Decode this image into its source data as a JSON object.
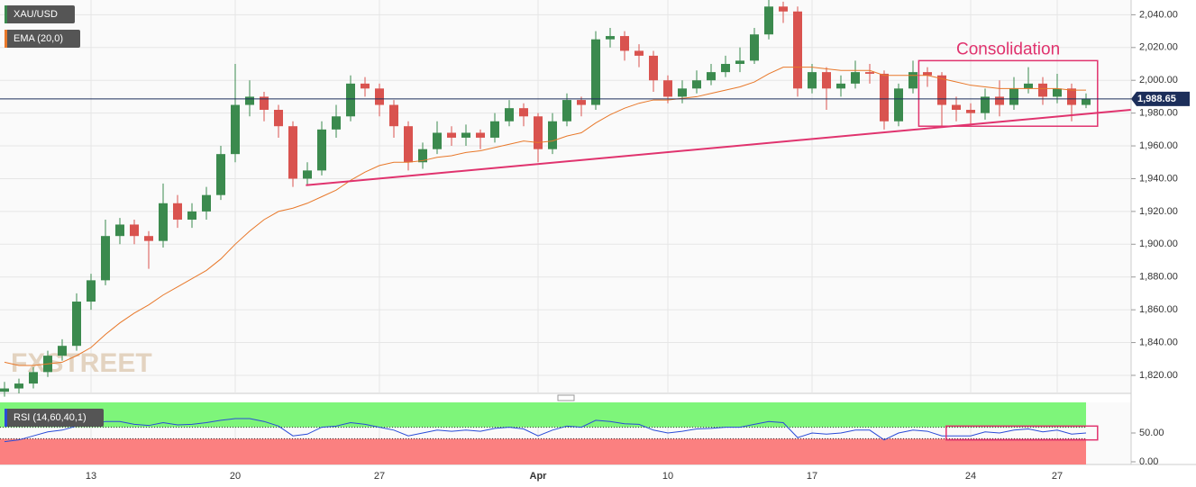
{
  "chart_data": {
    "type": "candlestick",
    "title": "XAU/USD",
    "categories": [
      null,
      null,
      null,
      null,
      null,
      null,
      "13",
      null,
      null,
      null,
      null,
      null,
      null,
      null,
      null,
      null,
      "20",
      null,
      null,
      null,
      null,
      null,
      null,
      null,
      null,
      null,
      "27",
      null,
      null,
      null,
      null,
      null,
      null,
      null,
      null,
      null,
      null,
      "Apr",
      null,
      null,
      null,
      null,
      null,
      null,
      null,
      null,
      "10",
      null,
      null,
      null,
      null,
      null,
      null,
      null,
      null,
      null,
      "17",
      null,
      null,
      null,
      null,
      null,
      null,
      null,
      null,
      null,
      null,
      "24",
      null,
      null,
      null,
      null,
      null,
      "27",
      null,
      null
    ],
    "open": [
      1810,
      1812,
      1815,
      1822,
      1832,
      1838,
      1865,
      1878,
      1905,
      1912,
      1905,
      1902,
      1925,
      1915,
      1920,
      1930,
      1955,
      1985,
      1990,
      1982,
      1972,
      1940,
      1945,
      1970,
      1978,
      1998,
      1995,
      1985,
      1972,
      1950,
      1958,
      1968,
      1965,
      1968,
      1965,
      1975,
      1983,
      1978,
      1958,
      1975,
      1988,
      1985,
      2025,
      2027,
      2018,
      2015,
      2000,
      1990,
      1995,
      2000,
      2005,
      2010,
      2012,
      2028,
      2045,
      2042,
      1995,
      2005,
      1995,
      1998,
      2005,
      2004,
      1975,
      1995,
      2005,
      2003,
      1985,
      1982,
      1980,
      1990,
      1985,
      1995,
      1998,
      1990,
      1995,
      1985
    ],
    "high": [
      1816,
      1818,
      1825,
      1835,
      1842,
      1870,
      1882,
      1915,
      1916,
      1915,
      1908,
      1937,
      1930,
      1925,
      1935,
      1960,
      2010,
      2000,
      1993,
      1985,
      1975,
      1950,
      1975,
      1985,
      2003,
      2002,
      1998,
      1988,
      1975,
      1962,
      1975,
      1972,
      1973,
      1970,
      1980,
      1988,
      1986,
      1980,
      1980,
      1992,
      1990,
      2030,
      2032,
      2030,
      2022,
      2018,
      2003,
      2000,
      2006,
      2010,
      2015,
      2020,
      2032,
      2049,
      2048,
      2045,
      2010,
      2008,
      2003,
      2012,
      2010,
      2006,
      1998,
      2012,
      2008,
      2005,
      1990,
      1986,
      1995,
      2000,
      2002,
      2008,
      2002,
      2004,
      1998,
      1992
    ],
    "low": [
      1807,
      1809,
      1812,
      1819,
      1829,
      1835,
      1860,
      1875,
      1900,
      1900,
      1885,
      1898,
      1910,
      1910,
      1915,
      1927,
      1950,
      1978,
      1975,
      1965,
      1935,
      1936,
      1942,
      1965,
      1975,
      1990,
      1978,
      1965,
      1945,
      1946,
      1955,
      1960,
      1960,
      1958,
      1962,
      1972,
      1972,
      1950,
      1955,
      1972,
      1978,
      1982,
      2020,
      2012,
      2008,
      1993,
      1986,
      1986,
      1992,
      1997,
      2002,
      2005,
      2010,
      2025,
      2035,
      1990,
      1992,
      1982,
      1990,
      1995,
      1998,
      1970,
      1972,
      1992,
      1996,
      1972,
      1975,
      1972,
      1976,
      1978,
      1982,
      1992,
      1985,
      1986,
      1975,
      1983
    ],
    "close": [
      1812,
      1815,
      1822,
      1832,
      1838,
      1865,
      1878,
      1905,
      1912,
      1905,
      1902,
      1925,
      1915,
      1920,
      1930,
      1955,
      1985,
      1990,
      1982,
      1972,
      1940,
      1945,
      1970,
      1978,
      1998,
      1995,
      1985,
      1972,
      1950,
      1958,
      1968,
      1965,
      1968,
      1965,
      1975,
      1983,
      1978,
      1958,
      1975,
      1988,
      1985,
      2025,
      2027,
      2018,
      2015,
      2000,
      1990,
      1995,
      2000,
      2005,
      2010,
      2012,
      2028,
      2045,
      2042,
      1995,
      2005,
      1995,
      1998,
      2005,
      2004,
      1975,
      1995,
      2005,
      2003,
      1985,
      1982,
      1980,
      1990,
      1985,
      1995,
      1998,
      1990,
      1995,
      1985,
      1988.65
    ],
    "up_color": "#3b8a4e",
    "down_color": "#d9534f",
    "ylim": [
      1809,
      2049
    ],
    "yticks": [
      {
        "value": 1820,
        "label": "1,820.00"
      },
      {
        "value": 1840,
        "label": "1,840.00"
      },
      {
        "value": 1860,
        "label": "1,860.00"
      },
      {
        "value": 1880,
        "label": "1,880.00"
      },
      {
        "value": 1900,
        "label": "1,900.00"
      },
      {
        "value": 1920,
        "label": "1,920.00"
      },
      {
        "value": 1940,
        "label": "1,940.00"
      },
      {
        "value": 1960,
        "label": "1,960.00"
      },
      {
        "value": 1980,
        "label": "1,980.00"
      },
      {
        "value": 2000,
        "label": "2,000.00"
      },
      {
        "value": 2020,
        "label": "2,020.00"
      },
      {
        "value": 2040,
        "label": "2,040.00"
      }
    ],
    "grid": true,
    "last_price": {
      "value": 1988.65,
      "label": "1,988.65"
    },
    "ema": {
      "name": "EMA (20,0)",
      "color": "#e8782a",
      "values": [
        1828,
        1826,
        1826,
        1827,
        1828,
        1832,
        1837,
        1845,
        1852,
        1858,
        1863,
        1869,
        1874,
        1879,
        1884,
        1891,
        1900,
        1908,
        1915,
        1920,
        1922,
        1925,
        1929,
        1933,
        1939,
        1944,
        1948,
        1950,
        1950,
        1951,
        1953,
        1954,
        1956,
        1957,
        1959,
        1961,
        1963,
        1962,
        1963,
        1966,
        1968,
        1974,
        1979,
        1983,
        1986,
        1988,
        1988,
        1989,
        1990,
        1992,
        1994,
        1996,
        1999,
        2004,
        2008,
        2008,
        2008,
        2007,
        2006,
        2006,
        2006,
        2003,
        2003,
        2003,
        2003,
        2001,
        1999,
        1997,
        1996,
        1995,
        1995,
        1995,
        1995,
        1995,
        1994,
        1994
      ]
    },
    "trendline": {
      "color": "#e0336e",
      "x": [
        20.9,
        78.1
      ],
      "y": [
        1936,
        1982
      ]
    },
    "annotation": {
      "text": "Consolidation",
      "color": "#e0336e",
      "x": [
        63.4,
        75.8
      ],
      "y": [
        1972,
        2012
      ]
    },
    "watermark": "FXSTREET",
    "rsi": {
      "name": "RSI (14,60,40,1)",
      "color": "#2a4bd7",
      "ylim": [
        0,
        100
      ],
      "yticks": [
        {
          "value": 0,
          "label": "0.00"
        },
        {
          "value": 50,
          "label": "50.00"
        }
      ],
      "upper": 60,
      "lower": 40,
      "upper_color": "#7ef57a",
      "lower_color": "#fb8080",
      "box": {
        "x": [
          65.3,
          75.8
        ],
        "y": [
          38,
          62
        ]
      },
      "values": [
        35,
        38,
        45,
        52,
        55,
        62,
        64,
        70,
        70,
        65,
        63,
        68,
        64,
        65,
        68,
        72,
        75,
        75,
        70,
        62,
        45,
        48,
        60,
        62,
        68,
        65,
        60,
        55,
        45,
        50,
        55,
        53,
        55,
        53,
        58,
        60,
        57,
        45,
        55,
        62,
        60,
        72,
        70,
        66,
        65,
        55,
        50,
        53,
        57,
        58,
        60,
        60,
        65,
        70,
        68,
        42,
        50,
        48,
        50,
        55,
        55,
        38,
        50,
        55,
        53,
        45,
        45,
        45,
        52,
        50,
        55,
        57,
        52,
        55,
        48,
        50
      ]
    }
  }
}
